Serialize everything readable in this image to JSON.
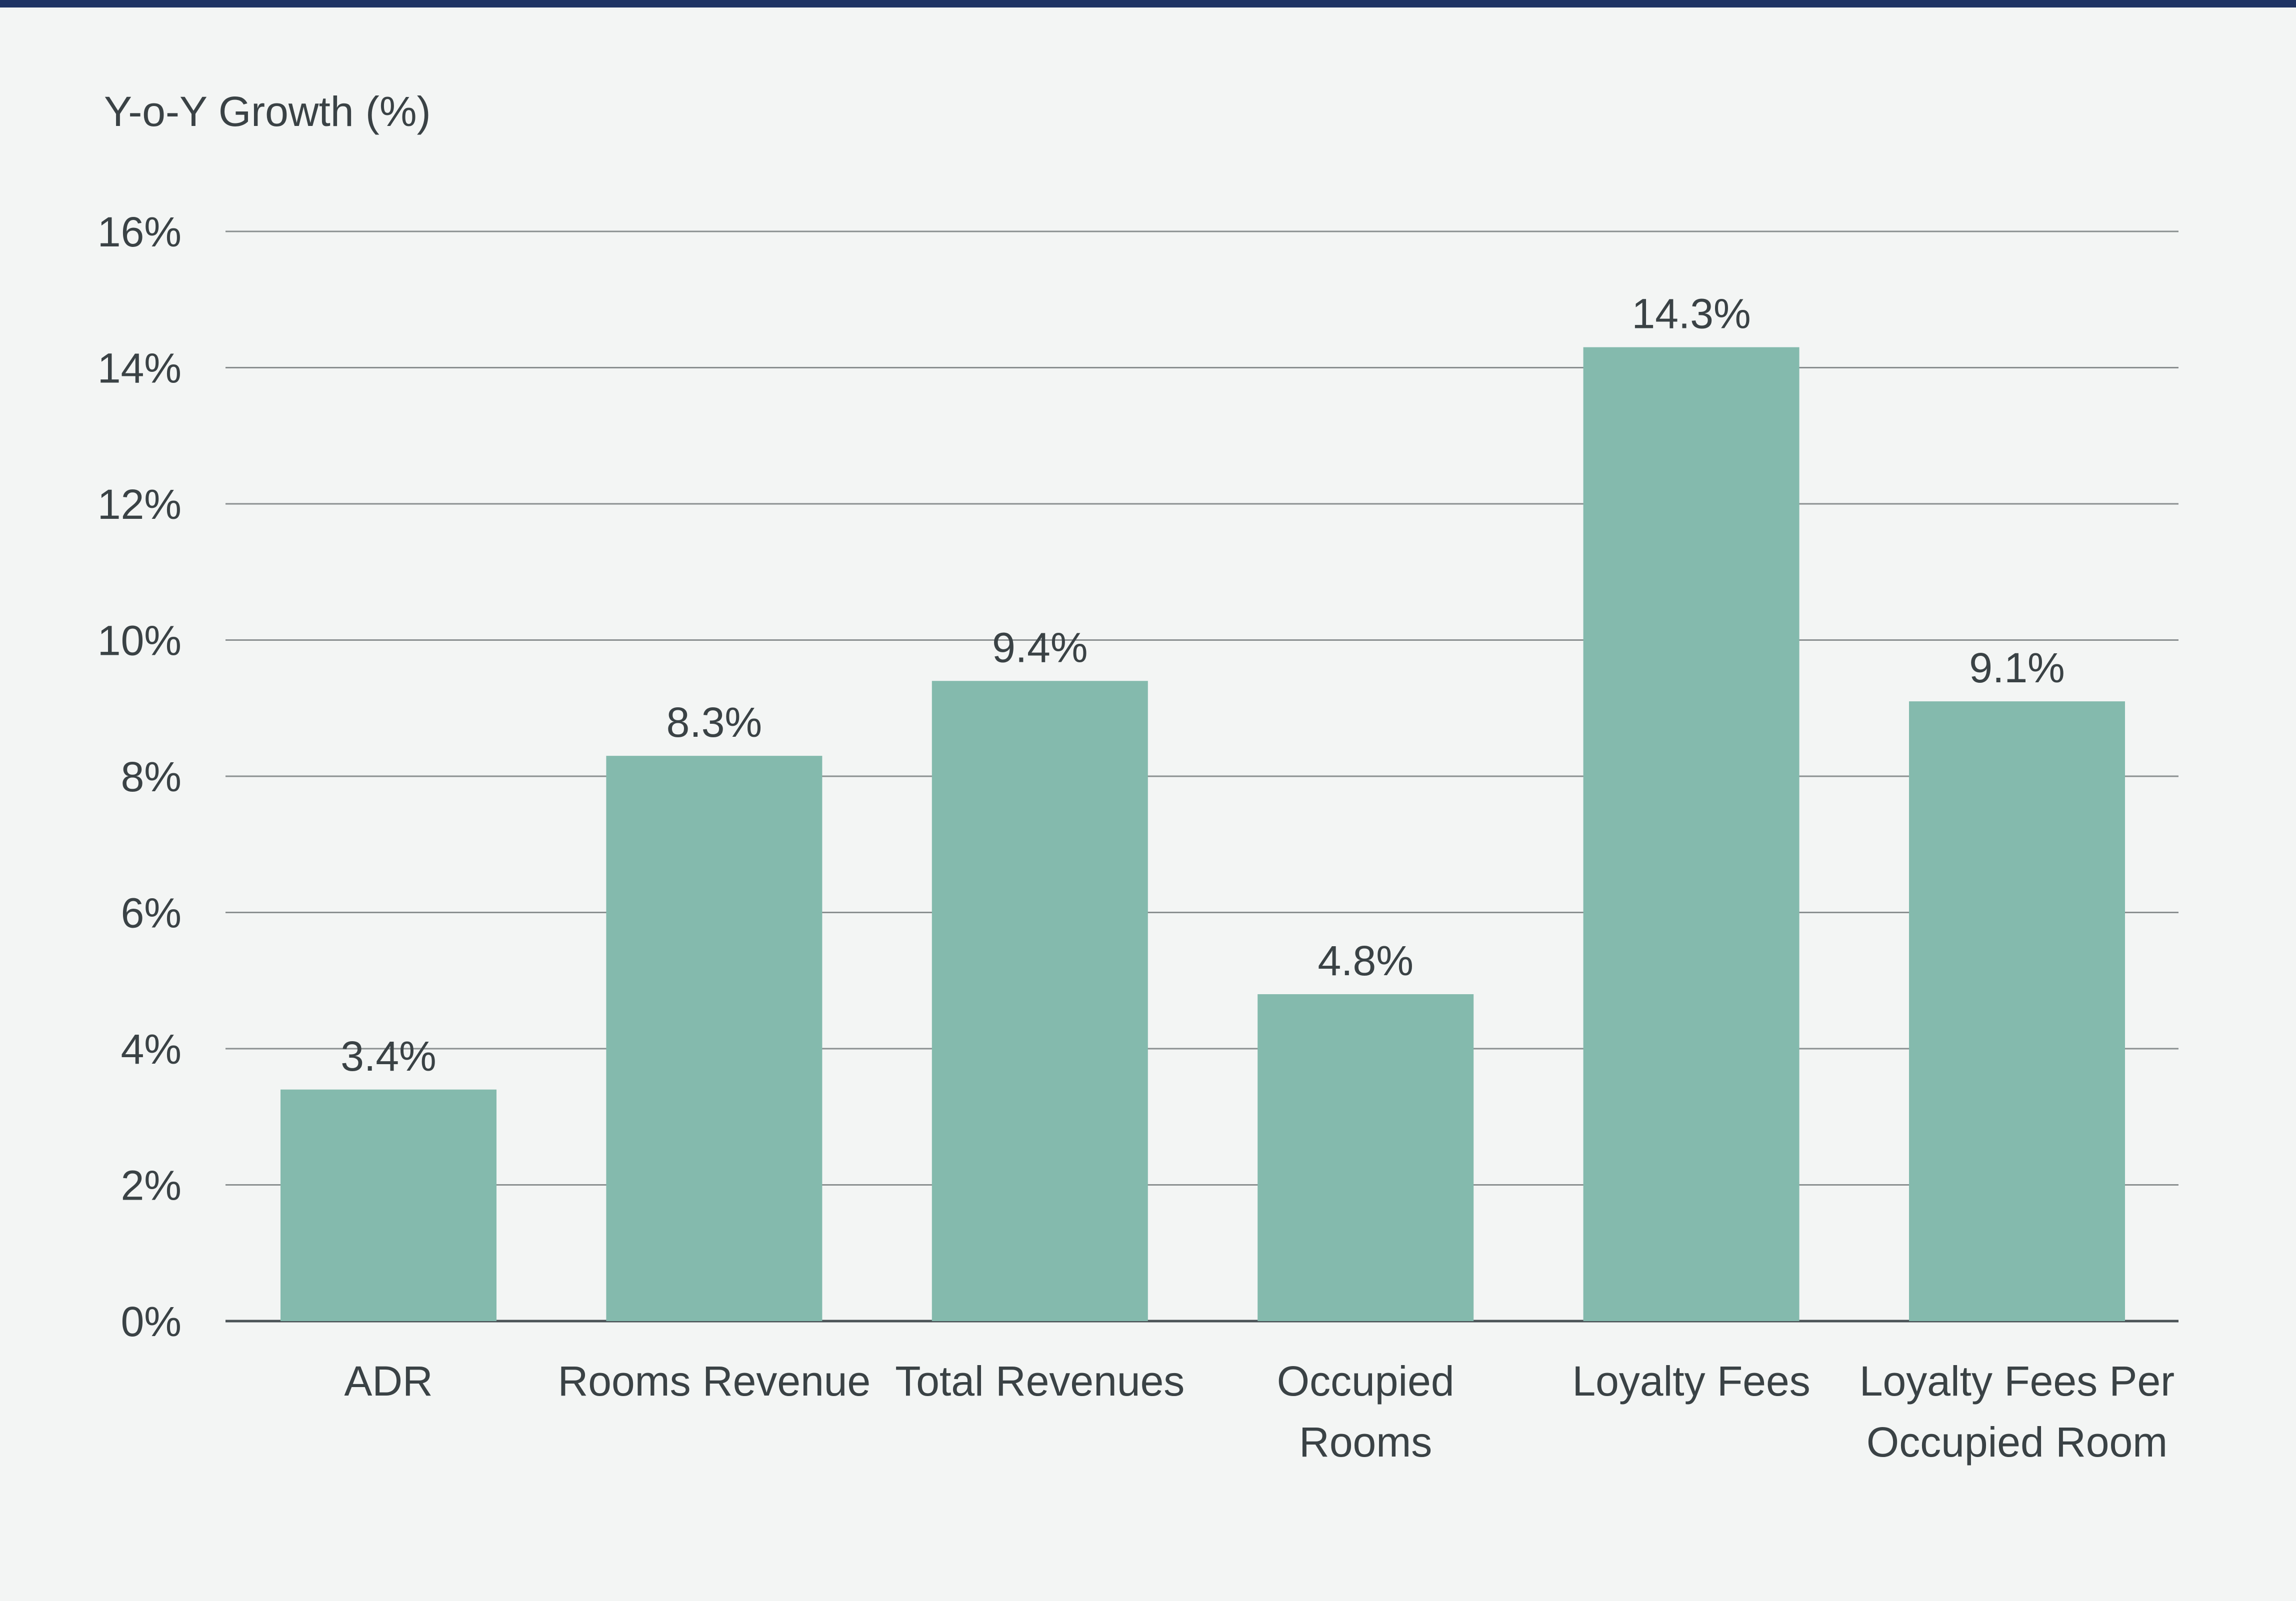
{
  "colors": {
    "background": "#f3f5f4",
    "top_rule": "#1f3464",
    "bar": "#84baad",
    "gridline": "#8a8f90",
    "baseline": "#4a5256",
    "text": "#3a4245"
  },
  "chart_data": {
    "type": "bar",
    "title": "",
    "ylabel": "Y-o-Y Growth (%)",
    "xlabel": "",
    "categories": [
      [
        "ADR"
      ],
      [
        "Rooms Revenue"
      ],
      [
        "Total Revenues"
      ],
      [
        "Occupied",
        "Rooms"
      ],
      [
        "Loyalty Fees"
      ],
      [
        "Loyalty Fees Per",
        "Occupied Room"
      ]
    ],
    "values": [
      3.4,
      8.3,
      9.4,
      4.8,
      14.3,
      9.1
    ],
    "value_labels": [
      "3.4%",
      "8.3%",
      "9.4%",
      "4.8%",
      "14.3%",
      "9.1%"
    ],
    "ylim": [
      0,
      16
    ],
    "yticks": [
      0,
      2,
      4,
      6,
      8,
      10,
      12,
      14,
      16
    ],
    "ytick_labels": [
      "0%",
      "2%",
      "4%",
      "6%",
      "8%",
      "10%",
      "12%",
      "14%",
      "16%"
    ],
    "grid": true,
    "legend": "none"
  }
}
